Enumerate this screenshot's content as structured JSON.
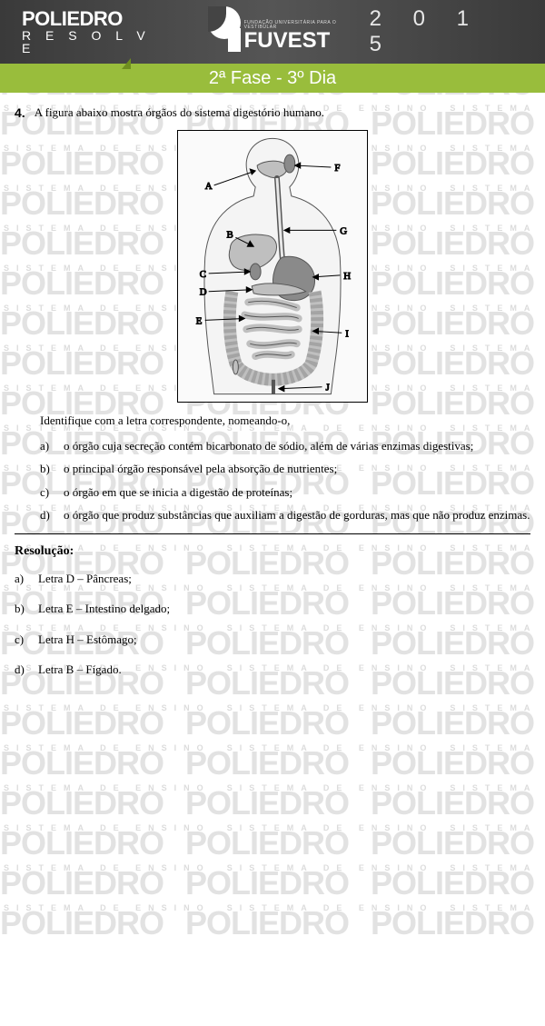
{
  "header": {
    "poliedro_line1": "POLIEDRO",
    "poliedro_line2": "R E S O L V E",
    "fuvest_sup": "FUNDAÇÃO UNIVERSITÁRIA PARA O VESTIBULAR",
    "fuvest_main": "FUVEST",
    "year": "2 0 1 5"
  },
  "band": "2ª Fase - 3º Dia",
  "question": {
    "number": "4.",
    "stem": "A figura abaixo mostra órgãos do sistema digestório humano.",
    "instruction": "Identifique com a letra correspondente, nomeando-o,",
    "items": [
      {
        "label": "a)",
        "text": "o órgão cuja secreção contém bicarbonato de sódio, além de várias enzimas digestivas;"
      },
      {
        "label": "b)",
        "text": "o principal órgão responsável pela absorção de nutrientes;"
      },
      {
        "label": "c)",
        "text": "o órgão em que se inicia a digestão de proteínas;"
      },
      {
        "label": "d)",
        "text": "o órgão que produz substâncias que auxiliam a digestão de gorduras, mas que não produz enzimas."
      }
    ]
  },
  "figure": {
    "labels": [
      "A",
      "B",
      "C",
      "D",
      "E",
      "F",
      "G",
      "H",
      "I",
      "J"
    ],
    "outline_color": "#555555",
    "fill_light": "#e8e8e8",
    "fill_mid": "#bfbfbf",
    "fill_dark": "#8a8a8a",
    "arrow_color": "#000000",
    "label_fontsize": 11
  },
  "resolution": {
    "title": "Resolução:",
    "answers": [
      {
        "label": "a)",
        "text": "Letra D – Pâncreas;"
      },
      {
        "label": "b)",
        "text": "Letra E – Intestino delgado;"
      },
      {
        "label": "c)",
        "text": "Letra H – Estômago;"
      },
      {
        "label": "d)",
        "text": "Letra B – Fígado."
      }
    ]
  },
  "watermark": {
    "sub": "SISTEMA DE ENSINO",
    "main": "POLIEDRO"
  }
}
